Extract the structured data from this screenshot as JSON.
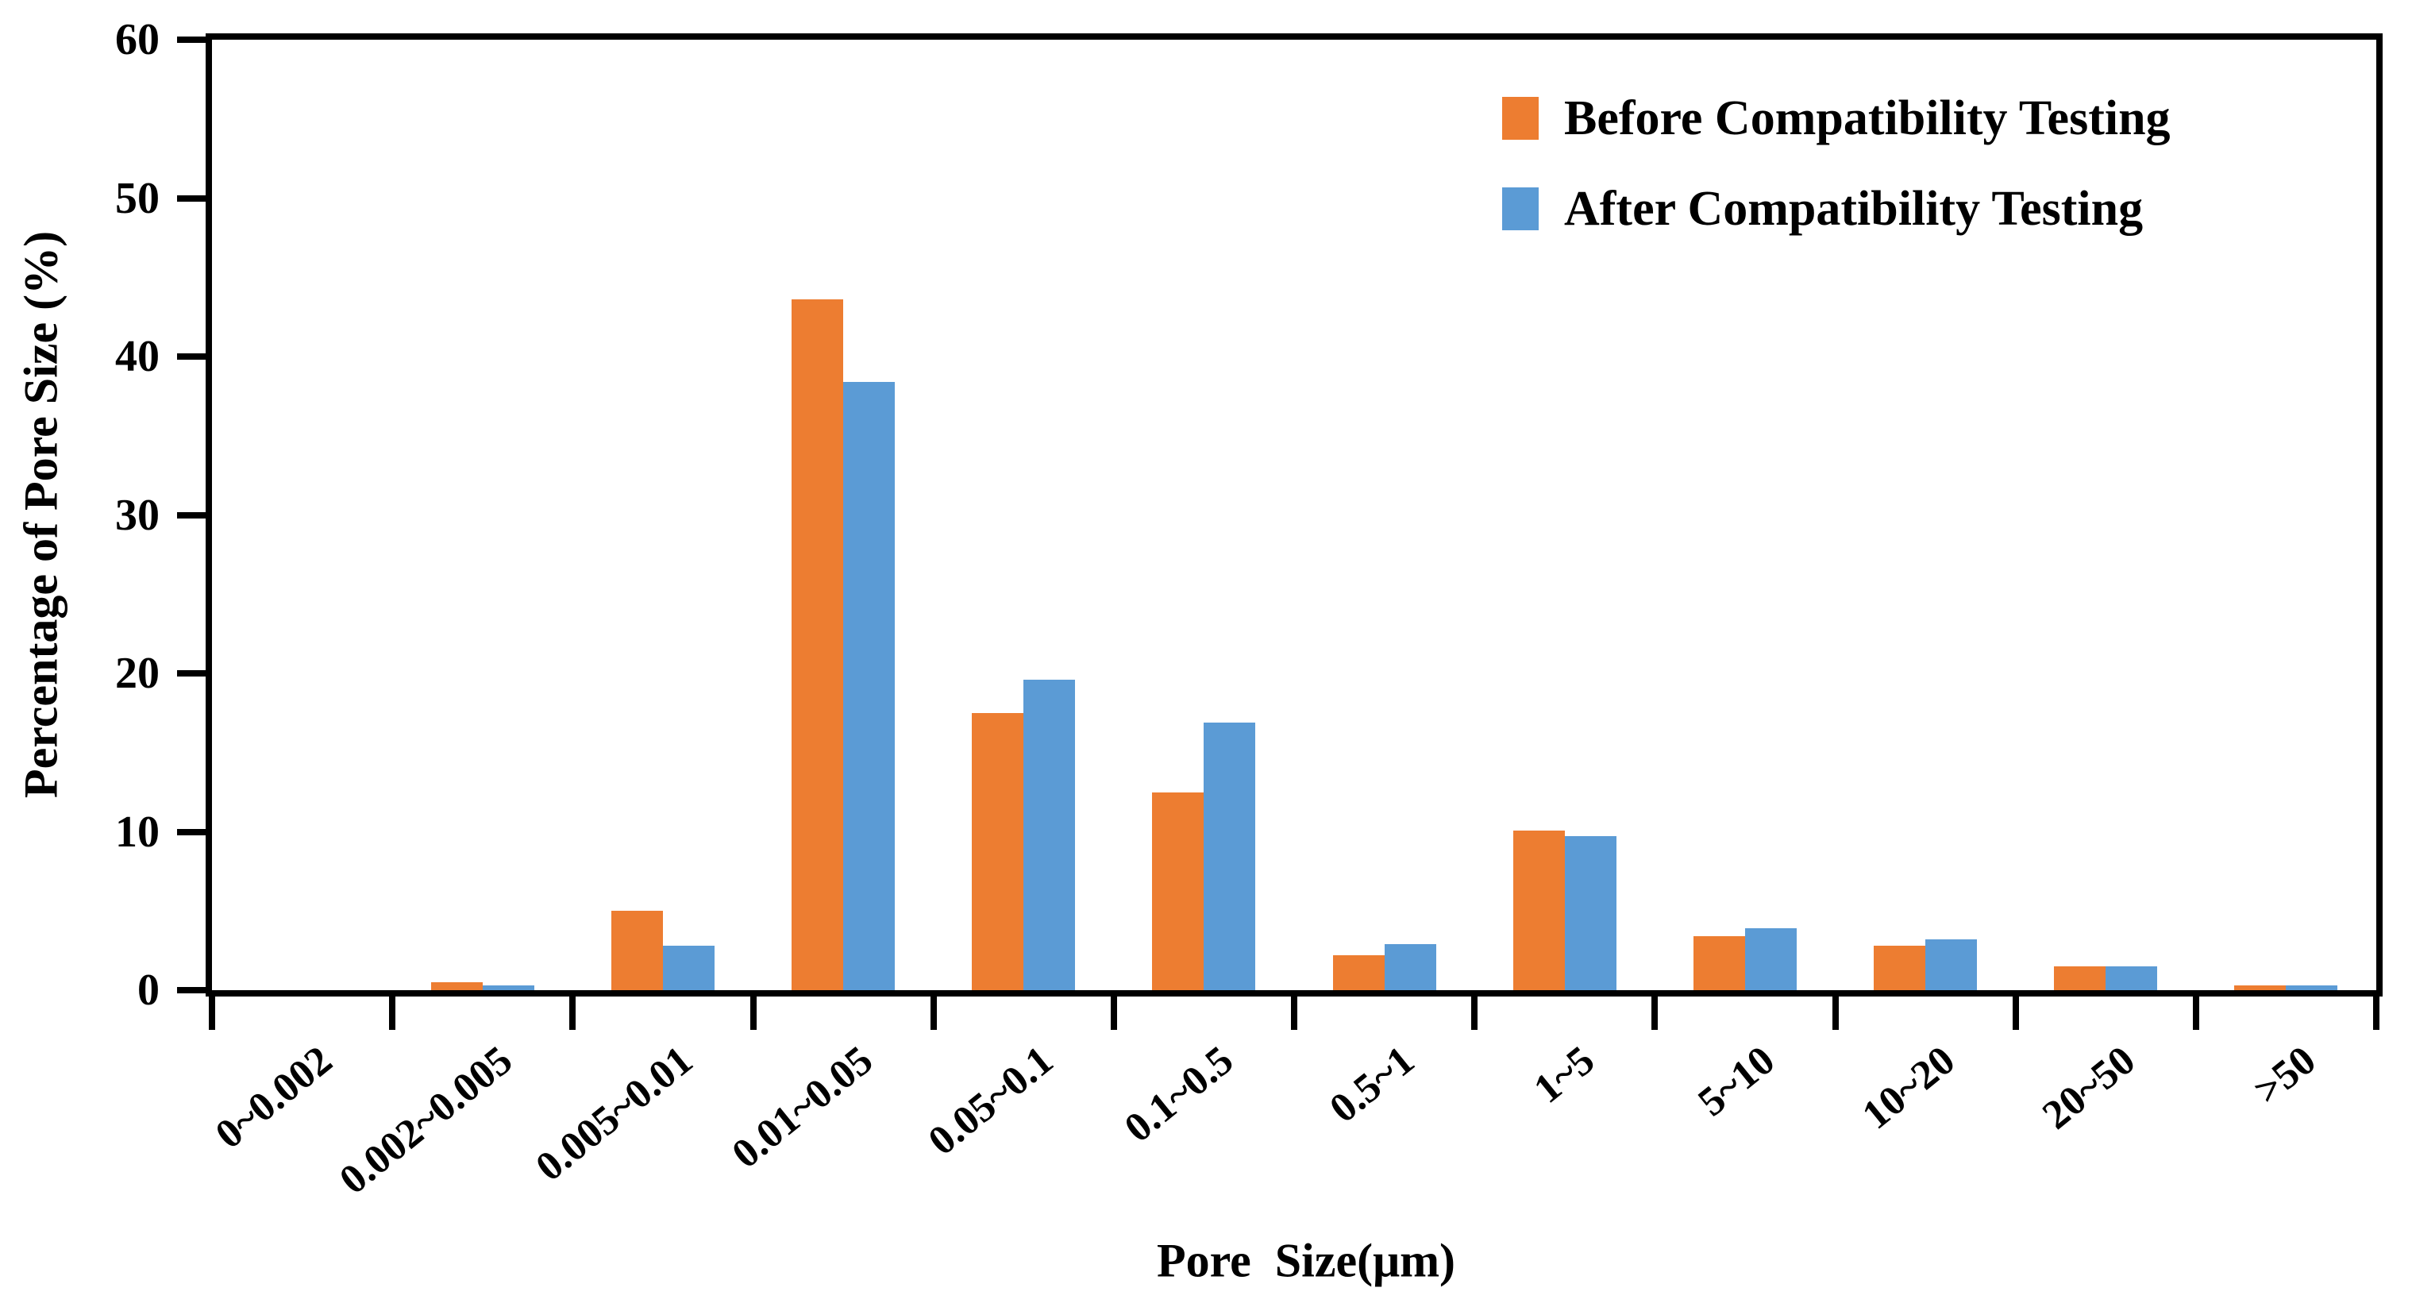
{
  "chart_data": {
    "type": "bar",
    "title": "",
    "xlabel": "Pore  Size(μm)",
    "ylabel": "Percentage of Pore Size (%)",
    "categories": [
      "0~0.002",
      "0.002~0.005",
      "0.005~0.01",
      "0.01~0.05",
      "0.05~0.1",
      "0.1~0.5",
      "0.5~1",
      "1~5",
      "5~10",
      "10~20",
      "20~50",
      ">50"
    ],
    "series": [
      {
        "name": "Before Compatibility Testing",
        "color": "#ED7D31",
        "values": [
          0,
          0.5,
          5.0,
          43.6,
          17.5,
          12.5,
          2.2,
          10.1,
          3.4,
          2.8,
          1.5,
          0.3
        ]
      },
      {
        "name": "After Compatibility Testing",
        "color": "#5B9BD5",
        "values": [
          0,
          0.3,
          2.8,
          38.4,
          19.6,
          16.9,
          2.9,
          9.7,
          3.9,
          3.2,
          1.5,
          0.3
        ]
      }
    ],
    "ylim": [
      0,
      60
    ],
    "yticks": [
      0,
      10,
      20,
      30,
      40,
      50,
      60
    ],
    "grid": false,
    "legend_position": "top-right-inside",
    "axis_color": "#000000",
    "background_color": "#FFFFFF"
  }
}
